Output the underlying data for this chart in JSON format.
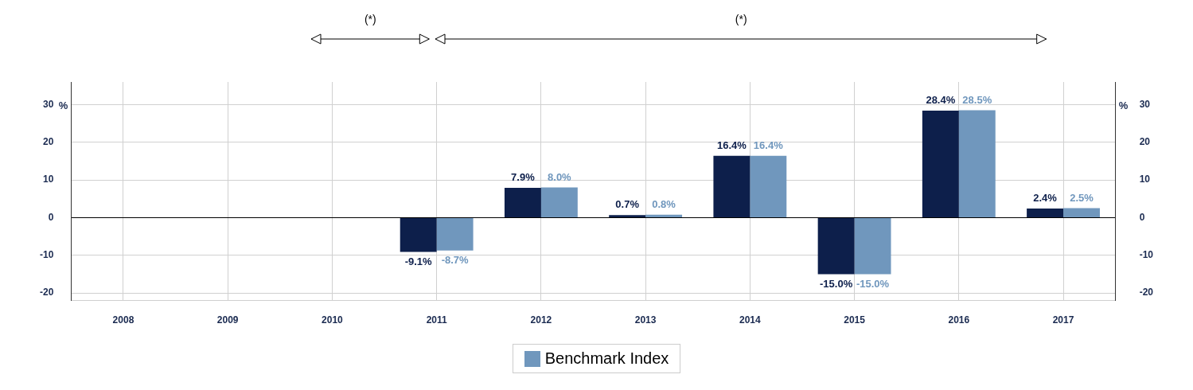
{
  "chart_data": {
    "type": "bar",
    "categories": [
      "2008",
      "2009",
      "2010",
      "2011",
      "2012",
      "2013",
      "2014",
      "2015",
      "2016",
      "2017"
    ],
    "series": [
      {
        "color": "#0d1f4b",
        "values": [
          null,
          null,
          null,
          -9.1,
          7.9,
          0.7,
          16.4,
          -15.0,
          28.4,
          2.4
        ],
        "value_labels": [
          null,
          null,
          null,
          "-9.1%",
          "7.9%",
          "0.7%",
          "16.4%",
          "-15.0%",
          "28.4%",
          "2.4%"
        ]
      },
      {
        "name": "Benchmark Index",
        "color": "#7097bd",
        "values": [
          null,
          null,
          null,
          -8.7,
          8.0,
          0.8,
          16.4,
          -15.0,
          28.5,
          2.5
        ],
        "value_labels": [
          null,
          null,
          null,
          "-8.7%",
          "8.0%",
          "0.8%",
          "16.4%",
          "-15.0%",
          "28.5%",
          "2.5%"
        ]
      }
    ],
    "ylabel": "%",
    "y2label": "%",
    "ylim": [
      -22,
      36
    ],
    "yticks": [
      -20,
      -10,
      0,
      10,
      20,
      30
    ],
    "y2lim": [
      -22,
      36
    ],
    "y2ticks": [
      -20,
      -10,
      0,
      10,
      20,
      30
    ],
    "annotations": [
      "(*)",
      "(*)"
    ],
    "grid": true,
    "legend": "bottom"
  }
}
